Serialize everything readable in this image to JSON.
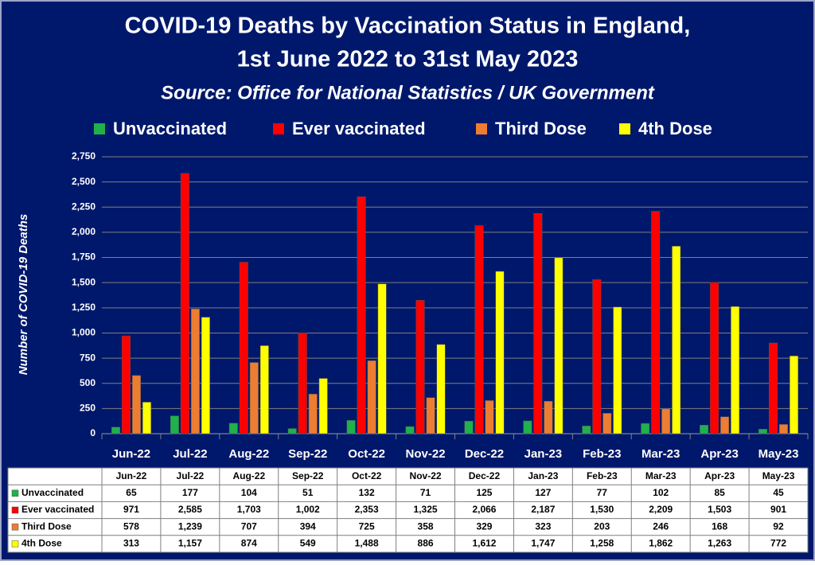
{
  "chart_data": {
    "type": "bar",
    "title": [
      "COVID-19 Deaths by Vaccination Status in England,",
      "1st June 2022 to 31st May 2023"
    ],
    "subtitle": "Source: Office for National Statistics / UK Government",
    "y_label": "Number of COVID-19 Deaths",
    "categories": [
      "Jun-22",
      "Jul-22",
      "Aug-22",
      "Sep-22",
      "Oct-22",
      "Nov-22",
      "Dec-22",
      "Jan-23",
      "Feb-23",
      "Mar-23",
      "Apr-23",
      "May-23"
    ],
    "series": [
      {
        "name": "Unvaccinated",
        "color": "#1fb14c",
        "values": [
          65,
          177,
          104,
          51,
          132,
          71,
          125,
          127,
          77,
          102,
          85,
          45
        ],
        "value_labels": [
          "65",
          "177",
          "104",
          "51",
          "132",
          "71",
          "125",
          "127",
          "77",
          "102",
          "85",
          "45"
        ]
      },
      {
        "name": "Ever vaccinated",
        "color": "#ff0000",
        "values": [
          971,
          2585,
          1703,
          1002,
          2353,
          1325,
          2066,
          2187,
          1530,
          2209,
          1503,
          901
        ],
        "value_labels": [
          "971",
          "2,585",
          "1,703",
          "1,002",
          "2,353",
          "1,325",
          "2,066",
          "2,187",
          "1,530",
          "2,209",
          "1,503",
          "901"
        ]
      },
      {
        "name": "Third Dose",
        "color": "#ed7d31",
        "values": [
          578,
          1239,
          707,
          394,
          725,
          358,
          329,
          323,
          203,
          246,
          168,
          92
        ],
        "value_labels": [
          "578",
          "1,239",
          "707",
          "394",
          "725",
          "358",
          "329",
          "323",
          "203",
          "246",
          "168",
          "92"
        ]
      },
      {
        "name": "4th Dose",
        "color": "#ffff00",
        "values": [
          313,
          1157,
          874,
          549,
          1488,
          886,
          1612,
          1747,
          1258,
          1862,
          1263,
          772
        ],
        "value_labels": [
          "313",
          "1,157",
          "874",
          "549",
          "1,488",
          "886",
          "1,612",
          "1,747",
          "1,258",
          "1,862",
          "1,263",
          "772"
        ]
      }
    ],
    "ylim": [
      0,
      2750
    ],
    "yticks": [
      0,
      250,
      500,
      750,
      {
        "value": 1000,
        "label": "1,000"
      },
      {
        "value": 1250,
        "label": "1,250"
      },
      {
        "value": 1500,
        "label": "1,500"
      },
      {
        "value": 1750,
        "label": "1,750"
      },
      {
        "value": 2000,
        "label": "2,000"
      },
      {
        "value": 2250,
        "label": "2,250"
      },
      {
        "value": 2500,
        "label": "2,500"
      },
      {
        "value": 2750,
        "label": "2,750"
      }
    ],
    "grid": true
  }
}
